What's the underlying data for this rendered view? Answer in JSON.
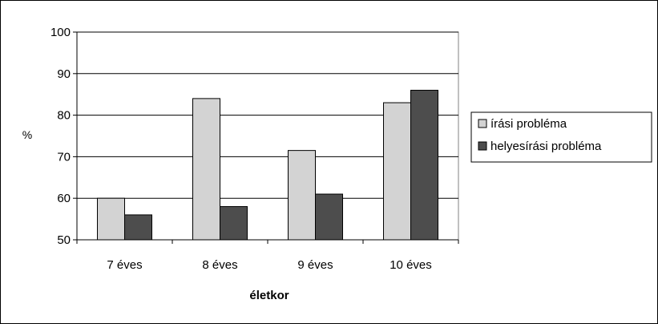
{
  "chart_data": {
    "type": "bar",
    "categories": [
      "7 éves",
      "8 éves",
      "9 éves",
      "10 éves"
    ],
    "series": [
      {
        "name": "írási probléma",
        "values": [
          60,
          84,
          71.5,
          83
        ],
        "color": "#d3d3d3"
      },
      {
        "name": "helyesírási probléma",
        "values": [
          56,
          58,
          61,
          86
        ],
        "color": "#4d4d4d"
      }
    ],
    "title": "",
    "xlabel": "életkor",
    "ylabel": "%",
    "ylim": [
      50,
      100
    ],
    "yticks": [
      50,
      60,
      70,
      80,
      90,
      100
    ],
    "grid": true,
    "legend_position": "right"
  }
}
